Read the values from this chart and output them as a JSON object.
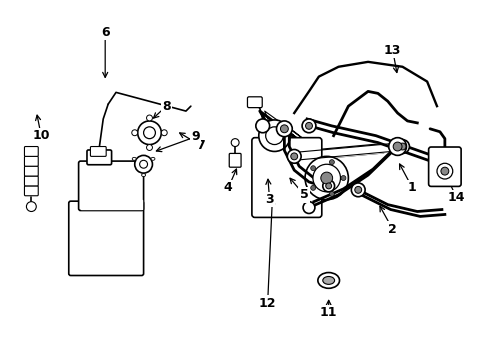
{
  "background_color": "#f5f5f5",
  "fig_width": 4.9,
  "fig_height": 3.6,
  "dpi": 100
}
